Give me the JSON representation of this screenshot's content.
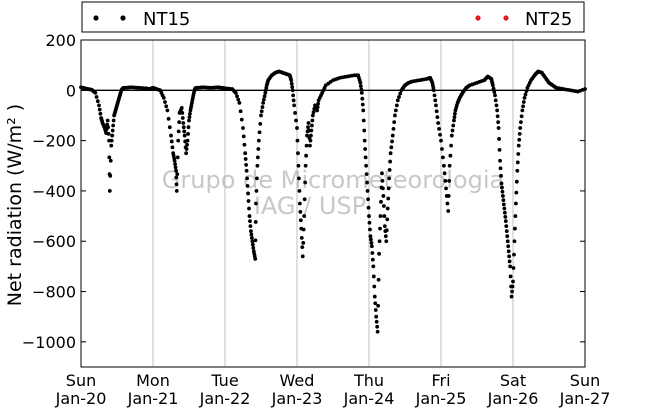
{
  "chart_data": {
    "type": "scatter",
    "ylabel": "Net radiation (W/m² )",
    "ylim": [
      -1100,
      200
    ],
    "yticks": [
      200,
      0,
      -200,
      -400,
      -600,
      -800,
      -1000
    ],
    "ytick_labels": [
      "200",
      "0",
      "−200",
      "−400",
      "−600",
      "−800",
      "−1000"
    ],
    "xlim": [
      "2014-01-20",
      "2014-01-27"
    ],
    "xtick_labels": [
      {
        "day": "Sun",
        "date": "Jan-20"
      },
      {
        "day": "Mon",
        "date": "Jan-21"
      },
      {
        "day": "Tue",
        "date": "Jan-22"
      },
      {
        "day": "Wed",
        "date": "Jan-23"
      },
      {
        "day": "Thu",
        "date": "Jan-24"
      },
      {
        "day": "Fri",
        "date": "Jan-25"
      },
      {
        "day": "Sat",
        "date": "Jan-26"
      },
      {
        "day": "Sun",
        "date": "Jan-27"
      }
    ],
    "grid": "vertical",
    "legend_placement": "top",
    "watermark": [
      "Grupo de Micrometeorologia",
      "IAG / USP"
    ],
    "series": [
      {
        "name": "NT15",
        "color": "#000000",
        "marker": "dot",
        "points": [
          [
            0.0,
            12
          ],
          [
            0.05,
            8
          ],
          [
            0.1,
            5
          ],
          [
            0.15,
            2
          ],
          [
            0.2,
            -10
          ],
          [
            0.25,
            -60
          ],
          [
            0.28,
            -110
          ],
          [
            0.3,
            -130
          ],
          [
            0.33,
            -150
          ],
          [
            0.35,
            -170
          ],
          [
            0.37,
            -120
          ],
          [
            0.39,
            -200
          ],
          [
            0.4,
            -400
          ],
          [
            0.42,
            -220
          ],
          [
            0.44,
            -160
          ],
          [
            0.46,
            -100
          ],
          [
            0.48,
            -80
          ],
          [
            0.5,
            -60
          ],
          [
            0.52,
            -40
          ],
          [
            0.54,
            -20
          ],
          [
            0.56,
            0
          ],
          [
            0.58,
            8
          ],
          [
            0.6,
            10
          ],
          [
            0.7,
            12
          ],
          [
            0.8,
            10
          ],
          [
            0.9,
            8
          ],
          [
            0.95,
            5
          ],
          [
            1.0,
            10
          ],
          [
            1.05,
            5
          ],
          [
            1.1,
            0
          ],
          [
            1.15,
            -30
          ],
          [
            1.2,
            -80
          ],
          [
            1.25,
            -180
          ],
          [
            1.28,
            -250
          ],
          [
            1.3,
            -280
          ],
          [
            1.32,
            -320
          ],
          [
            1.33,
            -400
          ],
          [
            1.35,
            -200
          ],
          [
            1.37,
            -90
          ],
          [
            1.4,
            -70
          ],
          [
            1.42,
            -130
          ],
          [
            1.44,
            -180
          ],
          [
            1.46,
            -250
          ],
          [
            1.48,
            -200
          ],
          [
            1.5,
            -120
          ],
          [
            1.52,
            -80
          ],
          [
            1.54,
            -50
          ],
          [
            1.56,
            -20
          ],
          [
            1.58,
            5
          ],
          [
            1.6,
            10
          ],
          [
            1.7,
            12
          ],
          [
            1.8,
            10
          ],
          [
            1.9,
            12
          ],
          [
            1.95,
            10
          ],
          [
            2.0,
            8
          ],
          [
            2.1,
            5
          ],
          [
            2.15,
            -10
          ],
          [
            2.2,
            -50
          ],
          [
            2.25,
            -150
          ],
          [
            2.28,
            -250
          ],
          [
            2.3,
            -320
          ],
          [
            2.32,
            -410
          ],
          [
            2.34,
            -500
          ],
          [
            2.36,
            -560
          ],
          [
            2.38,
            -600
          ],
          [
            2.4,
            -640
          ],
          [
            2.42,
            -670
          ],
          [
            2.43,
            -450
          ],
          [
            2.45,
            -300
          ],
          [
            2.47,
            -200
          ],
          [
            2.5,
            -100
          ],
          [
            2.53,
            -50
          ],
          [
            2.56,
            -10
          ],
          [
            2.58,
            20
          ],
          [
            2.6,
            40
          ],
          [
            2.65,
            60
          ],
          [
            2.7,
            70
          ],
          [
            2.75,
            75
          ],
          [
            2.8,
            70
          ],
          [
            2.85,
            65
          ],
          [
            2.9,
            60
          ],
          [
            2.92,
            40
          ],
          [
            2.94,
            0
          ],
          [
            2.96,
            -60
          ],
          [
            3.0,
            -150
          ],
          [
            3.02,
            -300
          ],
          [
            3.04,
            -450
          ],
          [
            3.06,
            -550
          ],
          [
            3.08,
            -660
          ],
          [
            3.1,
            -500
          ],
          [
            3.12,
            -300
          ],
          [
            3.14,
            -180
          ],
          [
            3.16,
            -130
          ],
          [
            3.18,
            -220
          ],
          [
            3.2,
            -160
          ],
          [
            3.22,
            -100
          ],
          [
            3.25,
            -60
          ],
          [
            3.28,
            -80
          ],
          [
            3.3,
            -40
          ],
          [
            3.35,
            -10
          ],
          [
            3.4,
            20
          ],
          [
            3.5,
            40
          ],
          [
            3.6,
            50
          ],
          [
            3.7,
            55
          ],
          [
            3.8,
            60
          ],
          [
            3.85,
            60
          ],
          [
            3.88,
            30
          ],
          [
            3.9,
            -10
          ],
          [
            3.92,
            -80
          ],
          [
            3.94,
            -200
          ],
          [
            3.96,
            -300
          ],
          [
            3.98,
            -400
          ],
          [
            4.0,
            -500
          ],
          [
            4.02,
            -580
          ],
          [
            4.04,
            -620
          ],
          [
            4.06,
            -700
          ],
          [
            4.08,
            -820
          ],
          [
            4.1,
            -900
          ],
          [
            4.12,
            -960
          ],
          [
            4.14,
            -650
          ],
          [
            4.16,
            -500
          ],
          [
            4.18,
            -330
          ],
          [
            4.2,
            -420
          ],
          [
            4.22,
            -540
          ],
          [
            4.24,
            -600
          ],
          [
            4.26,
            -470
          ],
          [
            4.28,
            -350
          ],
          [
            4.3,
            -250
          ],
          [
            4.33,
            -180
          ],
          [
            4.36,
            -100
          ],
          [
            4.4,
            -40
          ],
          [
            4.45,
            0
          ],
          [
            4.5,
            20
          ],
          [
            4.55,
            30
          ],
          [
            4.6,
            35
          ],
          [
            4.7,
            40
          ],
          [
            4.8,
            45
          ],
          [
            4.85,
            50
          ],
          [
            4.88,
            30
          ],
          [
            4.9,
            0
          ],
          [
            4.93,
            -60
          ],
          [
            4.96,
            -130
          ],
          [
            5.0,
            -200
          ],
          [
            5.04,
            -300
          ],
          [
            5.07,
            -390
          ],
          [
            5.1,
            -480
          ],
          [
            5.12,
            -300
          ],
          [
            5.15,
            -180
          ],
          [
            5.18,
            -120
          ],
          [
            5.2,
            -80
          ],
          [
            5.23,
            -50
          ],
          [
            5.26,
            -30
          ],
          [
            5.3,
            -10
          ],
          [
            5.35,
            10
          ],
          [
            5.4,
            20
          ],
          [
            5.5,
            30
          ],
          [
            5.6,
            40
          ],
          [
            5.65,
            55
          ],
          [
            5.7,
            45
          ],
          [
            5.72,
            20
          ],
          [
            5.75,
            -20
          ],
          [
            5.78,
            -80
          ],
          [
            5.8,
            -150
          ],
          [
            5.82,
            -280
          ],
          [
            5.84,
            -370
          ],
          [
            5.86,
            -420
          ],
          [
            5.88,
            -470
          ],
          [
            5.9,
            -520
          ],
          [
            5.92,
            -580
          ],
          [
            5.94,
            -640
          ],
          [
            5.96,
            -700
          ],
          [
            5.98,
            -820
          ],
          [
            6.0,
            -760
          ],
          [
            6.02,
            -600
          ],
          [
            6.04,
            -450
          ],
          [
            6.06,
            -320
          ],
          [
            6.08,
            -220
          ],
          [
            6.1,
            -150
          ],
          [
            6.13,
            -80
          ],
          [
            6.16,
            -30
          ],
          [
            6.2,
            10
          ],
          [
            6.25,
            40
          ],
          [
            6.3,
            60
          ],
          [
            6.35,
            75
          ],
          [
            6.4,
            70
          ],
          [
            6.45,
            50
          ],
          [
            6.5,
            30
          ],
          [
            6.55,
            20
          ],
          [
            6.6,
            10
          ],
          [
            6.7,
            5
          ],
          [
            6.8,
            0
          ],
          [
            6.9,
            -5
          ],
          [
            7.0,
            5
          ]
        ]
      },
      {
        "name": "NT25",
        "color": "#e41a1c",
        "marker": "dot",
        "points": []
      }
    ]
  }
}
